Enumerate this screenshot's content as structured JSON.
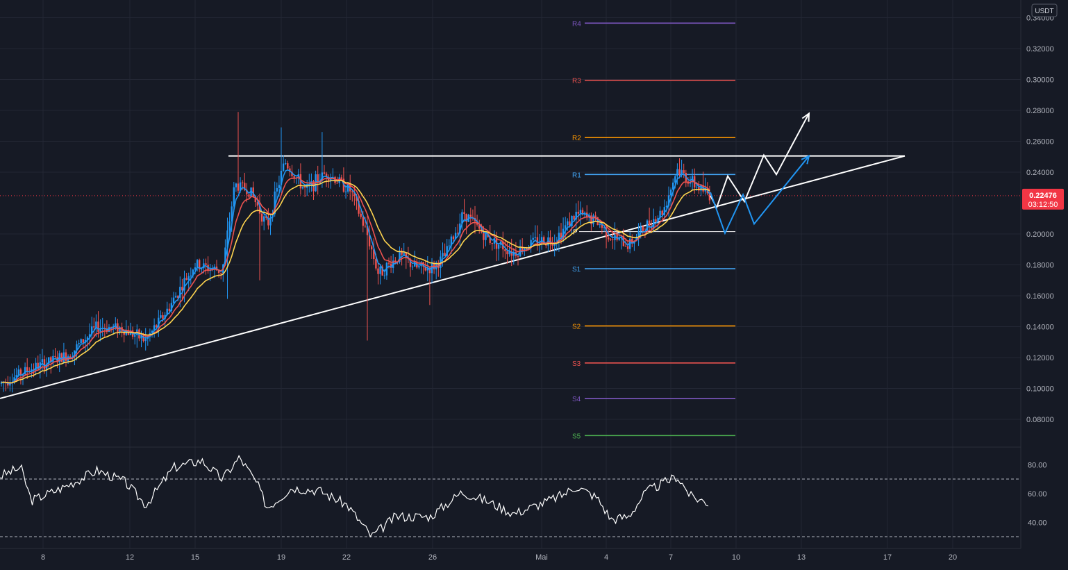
{
  "chart_data": {
    "type": "candlestick",
    "symbol_currency": "USDT",
    "x_axis_ticks": [
      "8",
      "12",
      "15",
      "19",
      "22",
      "26",
      "Mai",
      "4",
      "7",
      "10",
      "13",
      "17",
      "20"
    ],
    "price_axis": {
      "ticks": [
        "0.34000",
        "0.32000",
        "0.30000",
        "0.28000",
        "0.26000",
        "0.24000",
        "0.20000",
        "0.18000",
        "0.16000",
        "0.14000",
        "0.12000",
        "0.10000",
        "0.08000"
      ],
      "ylim": [
        0.068,
        0.347
      ]
    },
    "last_price": {
      "value": 0.22476,
      "label": "0.22476",
      "countdown": "03:12:50"
    },
    "pivot_levels": [
      {
        "name": "R4",
        "value": 0.3365,
        "color": "#7e57c2"
      },
      {
        "name": "R3",
        "value": 0.2995,
        "color": "#ef5350"
      },
      {
        "name": "R2",
        "value": 0.2625,
        "color": "#ff9800"
      },
      {
        "name": "R1",
        "value": 0.2385,
        "color": "#42a5f5"
      },
      {
        "name": "P",
        "value": 0.2015,
        "color": "#ffffff"
      },
      {
        "name": "S1",
        "value": 0.1775,
        "color": "#42a5f5"
      },
      {
        "name": "S2",
        "value": 0.1405,
        "color": "#ff9800"
      },
      {
        "name": "S3",
        "value": 0.1165,
        "color": "#ef5350"
      },
      {
        "name": "S4",
        "value": 0.0935,
        "color": "#7e57c2"
      },
      {
        "name": "S5",
        "value": 0.0695,
        "color": "#4caf50"
      }
    ],
    "rsi": {
      "ticks": [
        "80.00",
        "60.00",
        "40.00"
      ],
      "ylim": [
        28,
        93
      ],
      "bands": [
        70,
        30
      ]
    },
    "colors": {
      "up": "#2196f3",
      "down": "#ef5350",
      "ema_fast": "#2196f3",
      "ema_mid": "#ef5350",
      "ema_slow": "#ffd54f",
      "trendline": "#ffffff",
      "projection_a": "#ffffff",
      "projection_b": "#2196f3",
      "rsi_line": "#ffffff",
      "background": "#161a25",
      "price_label_bg": "#f23645"
    }
  }
}
